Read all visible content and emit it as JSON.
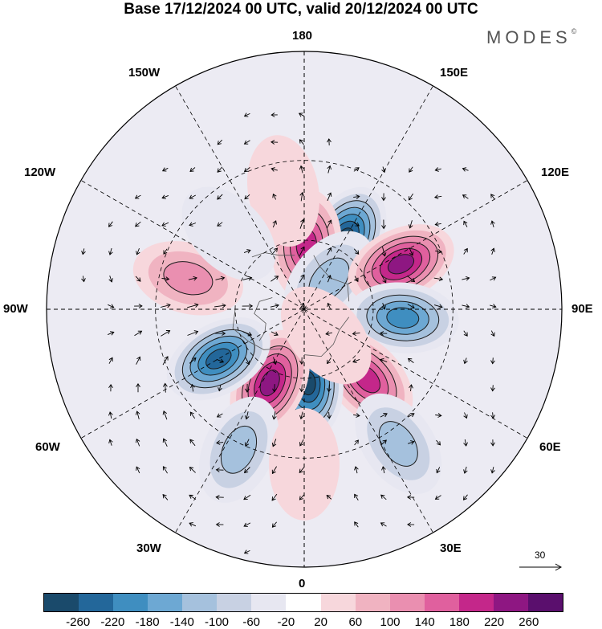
{
  "title": "Base 17/12/2024 00 UTC, valid 20/12/2024 00 UTC",
  "brand": "MODES",
  "brand_mark": "©",
  "longitude_labels": {
    "north": "180",
    "south": "0",
    "west": "90W",
    "east": "90E",
    "nw150": "150W",
    "ne150": "150E",
    "nw120": "120W",
    "ne120": "120E",
    "sw60": "60W",
    "se60": "60E",
    "sw30": "30W",
    "se30": "30E"
  },
  "reference_vector": {
    "label": "30",
    "icon": "arrow-right-icon"
  },
  "colorbar": {
    "colors": [
      "#1a4a6b",
      "#23679a",
      "#3f8ec0",
      "#6da8d3",
      "#a5c1dd",
      "#c8d1e3",
      "#e7e7f1",
      "#ffffff",
      "#f7d7dc",
      "#f0b3c1",
      "#ea8fb0",
      "#e0609e",
      "#c4278a",
      "#8e1782",
      "#5a0f6d"
    ],
    "ticks": [
      "-260",
      "-220",
      "-180",
      "-140",
      "-100",
      "-60",
      "-20",
      "20",
      "60",
      "100",
      "140",
      "180",
      "220",
      "260"
    ]
  },
  "anomaly_centers": [
    {
      "lon": 150,
      "lat": 55,
      "value": -280
    },
    {
      "lon": 178,
      "lat": 62,
      "value": 230
    },
    {
      "lon": 140,
      "lat": 73,
      "value": -120
    },
    {
      "lon": 115,
      "lat": 45,
      "value": 270
    },
    {
      "lon": 85,
      "lat": 48,
      "value": -230
    },
    {
      "lon": 42,
      "lat": 50,
      "value": 230
    },
    {
      "lon": 3,
      "lat": 58,
      "value": -300
    },
    {
      "lon": 335,
      "lat": 55,
      "value": 260
    },
    {
      "lon": 300,
      "lat": 48,
      "value": -260
    },
    {
      "lon": 35,
      "lat": 25,
      "value": -130
    },
    {
      "lon": 335,
      "lat": 28,
      "value": -150
    },
    {
      "lon": 255,
      "lat": 40,
      "value": 140
    },
    {
      "lon": 190,
      "lat": 40,
      "value": 70
    },
    {
      "lon": 0,
      "lat": 28,
      "value": 70
    },
    {
      "lon": 225,
      "lat": 45,
      "value": -40
    },
    {
      "lon": 40,
      "lat": 75,
      "value": 50
    }
  ]
}
